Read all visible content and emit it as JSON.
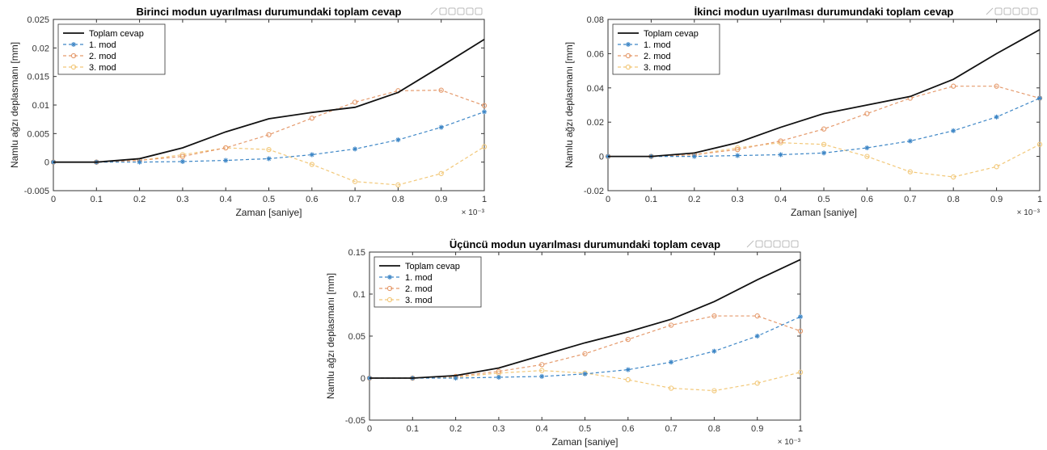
{
  "colors": {
    "total": "#111111",
    "mode1": "#3d86c6",
    "mode2": "#e59a6c",
    "mode3": "#f2c879",
    "grid": "#e6e6e6",
    "axes": "#333333"
  },
  "chart_data": [
    {
      "type": "line",
      "title": "Birinci modun uyarılması durumundaki toplam cevap",
      "xlabel": "Zaman [saniye]",
      "ylabel": "Namlu ağzı deplasmanı [mm]",
      "x_exponent": "× 10⁻³",
      "x": [
        0,
        0.1,
        0.2,
        0.3,
        0.4,
        0.5,
        0.6,
        0.7,
        0.8,
        0.9,
        1
      ],
      "xlim": [
        0,
        1
      ],
      "ylim": [
        -0.005,
        0.025
      ],
      "xticks": [
        "0",
        "0.1",
        "0.2",
        "0.3",
        "0.4",
        "0.5",
        "0.6",
        "0.7",
        "0.8",
        "0.9",
        "1"
      ],
      "yticks": [
        "-0.005",
        "0",
        "0.005",
        "0.01",
        "0.015",
        "0.02",
        "0.025"
      ],
      "ytick_values": [
        -0.005,
        0,
        0.005,
        0.01,
        0.015,
        0.02,
        0.025
      ],
      "legend_position": "top-left",
      "grid": false,
      "series": [
        {
          "name": "Toplam cevap",
          "color": "#111111",
          "dashed": false,
          "marker": "none",
          "values": [
            0,
            0,
            0.0006,
            0.0025,
            0.0053,
            0.0076,
            0.0087,
            0.0096,
            0.0122,
            0.0168,
            0.0215
          ]
        },
        {
          "name": "1. mod",
          "color": "#3d86c6",
          "dashed": true,
          "marker": "star",
          "values": [
            0,
            0,
            0,
            0.0001,
            0.0003,
            0.0006,
            0.0013,
            0.0023,
            0.0039,
            0.0061,
            0.0088
          ]
        },
        {
          "name": "2. mod",
          "color": "#e59a6c",
          "dashed": true,
          "marker": "circle",
          "values": [
            0,
            0,
            0.0003,
            0.001,
            0.0025,
            0.0048,
            0.0077,
            0.0105,
            0.0125,
            0.0126,
            0.0099
          ]
        },
        {
          "name": "3. mod",
          "color": "#f2c879",
          "dashed": true,
          "marker": "circle",
          "values": [
            0,
            0,
            0.0003,
            0.0013,
            0.0025,
            0.0022,
            -0.0004,
            -0.0034,
            -0.004,
            -0.002,
            0.0027
          ]
        }
      ]
    },
    {
      "type": "line",
      "title": "İkinci modun uyarılması durumundaki toplam cevap",
      "xlabel": "Zaman [saniye]",
      "ylabel": "Namlu ağzı deplasmanı [mm]",
      "x_exponent": "× 10⁻³",
      "x": [
        0,
        0.1,
        0.2,
        0.3,
        0.4,
        0.5,
        0.6,
        0.7,
        0.8,
        0.9,
        1
      ],
      "xlim": [
        0,
        1
      ],
      "ylim": [
        -0.02,
        0.08
      ],
      "xticks": [
        "0",
        "0.1",
        "0.2",
        "0.3",
        "0.4",
        "0.5",
        "0.6",
        "0.7",
        "0.8",
        "0.9",
        "1"
      ],
      "yticks": [
        "-0.02",
        "0",
        "0.02",
        "0.04",
        "0.06",
        "0.08"
      ],
      "ytick_values": [
        -0.02,
        0,
        0.02,
        0.04,
        0.06,
        0.08
      ],
      "legend_position": "top-left",
      "grid": false,
      "series": [
        {
          "name": "Toplam cevap",
          "color": "#111111",
          "dashed": false,
          "marker": "none",
          "values": [
            0,
            0,
            0.002,
            0.008,
            0.017,
            0.025,
            0.03,
            0.035,
            0.045,
            0.06,
            0.074
          ]
        },
        {
          "name": "1. mod",
          "color": "#3d86c6",
          "dashed": true,
          "marker": "star",
          "values": [
            0,
            0,
            0,
            0.0005,
            0.001,
            0.002,
            0.005,
            0.009,
            0.015,
            0.023,
            0.034
          ]
        },
        {
          "name": "2. mod",
          "color": "#e59a6c",
          "dashed": true,
          "marker": "circle",
          "values": [
            0,
            0,
            0.001,
            0.004,
            0.009,
            0.016,
            0.025,
            0.034,
            0.041,
            0.041,
            0.034
          ]
        },
        {
          "name": "3. mod",
          "color": "#f2c879",
          "dashed": true,
          "marker": "circle",
          "values": [
            0,
            0,
            0.001,
            0.005,
            0.008,
            0.007,
            0,
            -0.009,
            -0.012,
            -0.006,
            0.007
          ]
        }
      ]
    },
    {
      "type": "line",
      "title": "Üçüncü modun uyarılması durumundaki toplam cevap",
      "xlabel": "Zaman [saniye]",
      "ylabel": "Namlu ağzı deplasmanı [mm]",
      "x_exponent": "× 10⁻³",
      "x": [
        0,
        0.1,
        0.2,
        0.3,
        0.4,
        0.5,
        0.6,
        0.7,
        0.8,
        0.9,
        1
      ],
      "xlim": [
        0,
        1
      ],
      "ylim": [
        -0.05,
        0.15
      ],
      "xticks": [
        "0",
        "0.1",
        "0.2",
        "0.3",
        "0.4",
        "0.5",
        "0.6",
        "0.7",
        "0.8",
        "0.9",
        "1"
      ],
      "yticks": [
        "-0.05",
        "0",
        "0.05",
        "0.1",
        "0.15"
      ],
      "ytick_values": [
        -0.05,
        0,
        0.05,
        0.1,
        0.15
      ],
      "legend_position": "top-left",
      "grid": false,
      "series": [
        {
          "name": "Toplam cevap",
          "color": "#111111",
          "dashed": false,
          "marker": "none",
          "values": [
            0,
            0,
            0.003,
            0.012,
            0.027,
            0.042,
            0.055,
            0.07,
            0.091,
            0.117,
            0.141
          ]
        },
        {
          "name": "1. mod",
          "color": "#3d86c6",
          "dashed": true,
          "marker": "star",
          "values": [
            0,
            0,
            0,
            0.001,
            0.002,
            0.005,
            0.01,
            0.019,
            0.032,
            0.05,
            0.073
          ]
        },
        {
          "name": "2. mod",
          "color": "#e59a6c",
          "dashed": true,
          "marker": "circle",
          "values": [
            0,
            0,
            0.002,
            0.008,
            0.016,
            0.029,
            0.046,
            0.063,
            0.074,
            0.074,
            0.056
          ]
        },
        {
          "name": "3. mod",
          "color": "#f2c879",
          "dashed": true,
          "marker": "circle",
          "values": [
            0,
            0,
            0.001,
            0.006,
            0.009,
            0.006,
            -0.002,
            -0.012,
            -0.015,
            -0.006,
            0.007
          ]
        }
      ]
    }
  ]
}
